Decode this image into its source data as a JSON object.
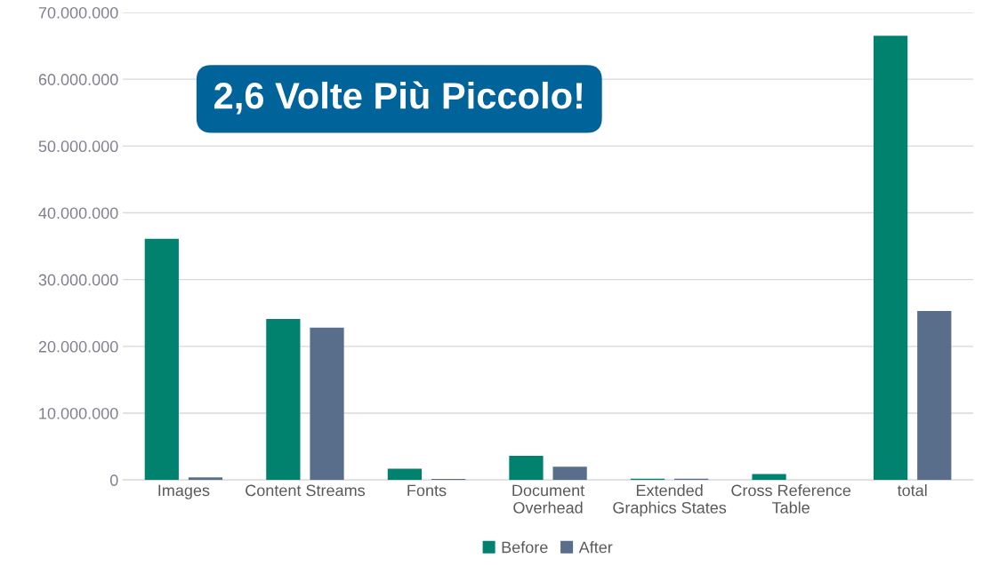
{
  "chart_data": {
    "type": "bar",
    "categories": [
      "Images",
      "Content Streams",
      "Fonts",
      "Document\nOverhead",
      "Extended\nGraphics States",
      "Cross Reference\nTable",
      "total"
    ],
    "series": [
      {
        "name": "Before",
        "color": "#00826f",
        "values": [
          36100000,
          24100000,
          1700000,
          3600000,
          200000,
          900000,
          66500000
        ]
      },
      {
        "name": "After",
        "color": "#586e8a",
        "values": [
          400000,
          22800000,
          150000,
          2000000,
          200000,
          null,
          25300000
        ]
      }
    ],
    "ylim": [
      0,
      70000000
    ],
    "yticks": [
      {
        "value": 0,
        "label": "0"
      },
      {
        "value": 10000000,
        "label": "10.000.000"
      },
      {
        "value": 20000000,
        "label": "20.000.000"
      },
      {
        "value": 30000000,
        "label": "30.000.000"
      },
      {
        "value": 40000000,
        "label": "40.000.000"
      },
      {
        "value": 50000000,
        "label": "50.000.000"
      },
      {
        "value": 60000000,
        "label": "60.000.000"
      },
      {
        "value": 70000000,
        "label": "70.000.000"
      }
    ],
    "grid": "y",
    "legend": "bottom",
    "annotations": [
      "2,6 Volte Più Piccolo!"
    ]
  }
}
